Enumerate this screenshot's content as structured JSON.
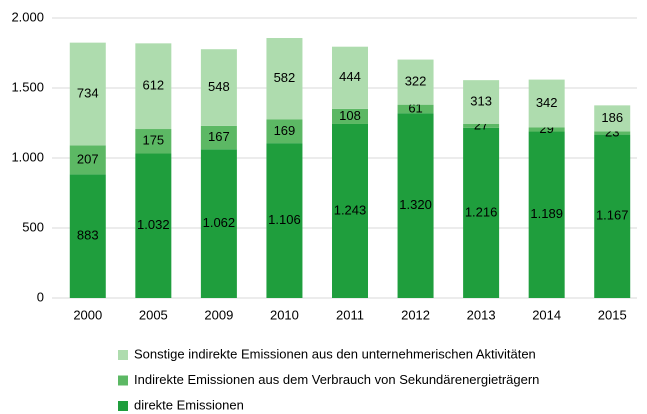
{
  "chart_data": {
    "type": "stacked_bar",
    "categories": [
      "2000",
      "2005",
      "2009",
      "2010",
      "2011",
      "2012",
      "2013",
      "2014",
      "2015"
    ],
    "series": [
      {
        "name": "direkte Emissionen",
        "color": "#1f9e3d",
        "values": [
          883,
          1032,
          1062,
          1106,
          1243,
          1320,
          1216,
          1189,
          1167
        ],
        "value_labels": [
          "883",
          "1.032",
          "1.062",
          "1.106",
          "1.243",
          "1.320",
          "1.216",
          "1.189",
          "1.167"
        ]
      },
      {
        "name": "Indirekte Emissionen aus dem Verbrauch von Sekundärenergieträgern",
        "color": "#5cb864",
        "values": [
          207,
          175,
          167,
          169,
          108,
          61,
          27,
          29,
          23
        ]
      },
      {
        "name": "Sonstige indirekte Emissionen aus den unternehmerischen Aktivitäten",
        "color": "#aedcae",
        "values": [
          734,
          612,
          548,
          582,
          444,
          322,
          313,
          342,
          186
        ]
      }
    ],
    "ylim": [
      0,
      2000
    ],
    "yticks": [
      0,
      500,
      {
        "value": 1000,
        "label": "1.000"
      },
      {
        "value": 1500,
        "label": "1.500"
      },
      {
        "value": 2000,
        "label": "2.000"
      }
    ],
    "grid": true
  }
}
